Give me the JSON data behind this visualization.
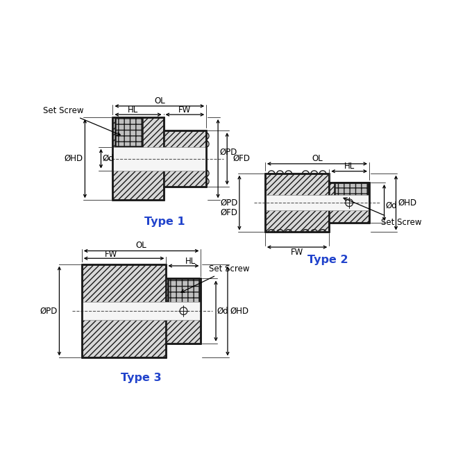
{
  "bg_color": "#ffffff",
  "line_color": "#1a1a1a",
  "type_label_color": "#2244cc",
  "type1_label": "Type 1",
  "type2_label": "Type 2",
  "type3_label": "Type 3",
  "label_fontsize": 8.5,
  "type_fontsize": 11.5
}
